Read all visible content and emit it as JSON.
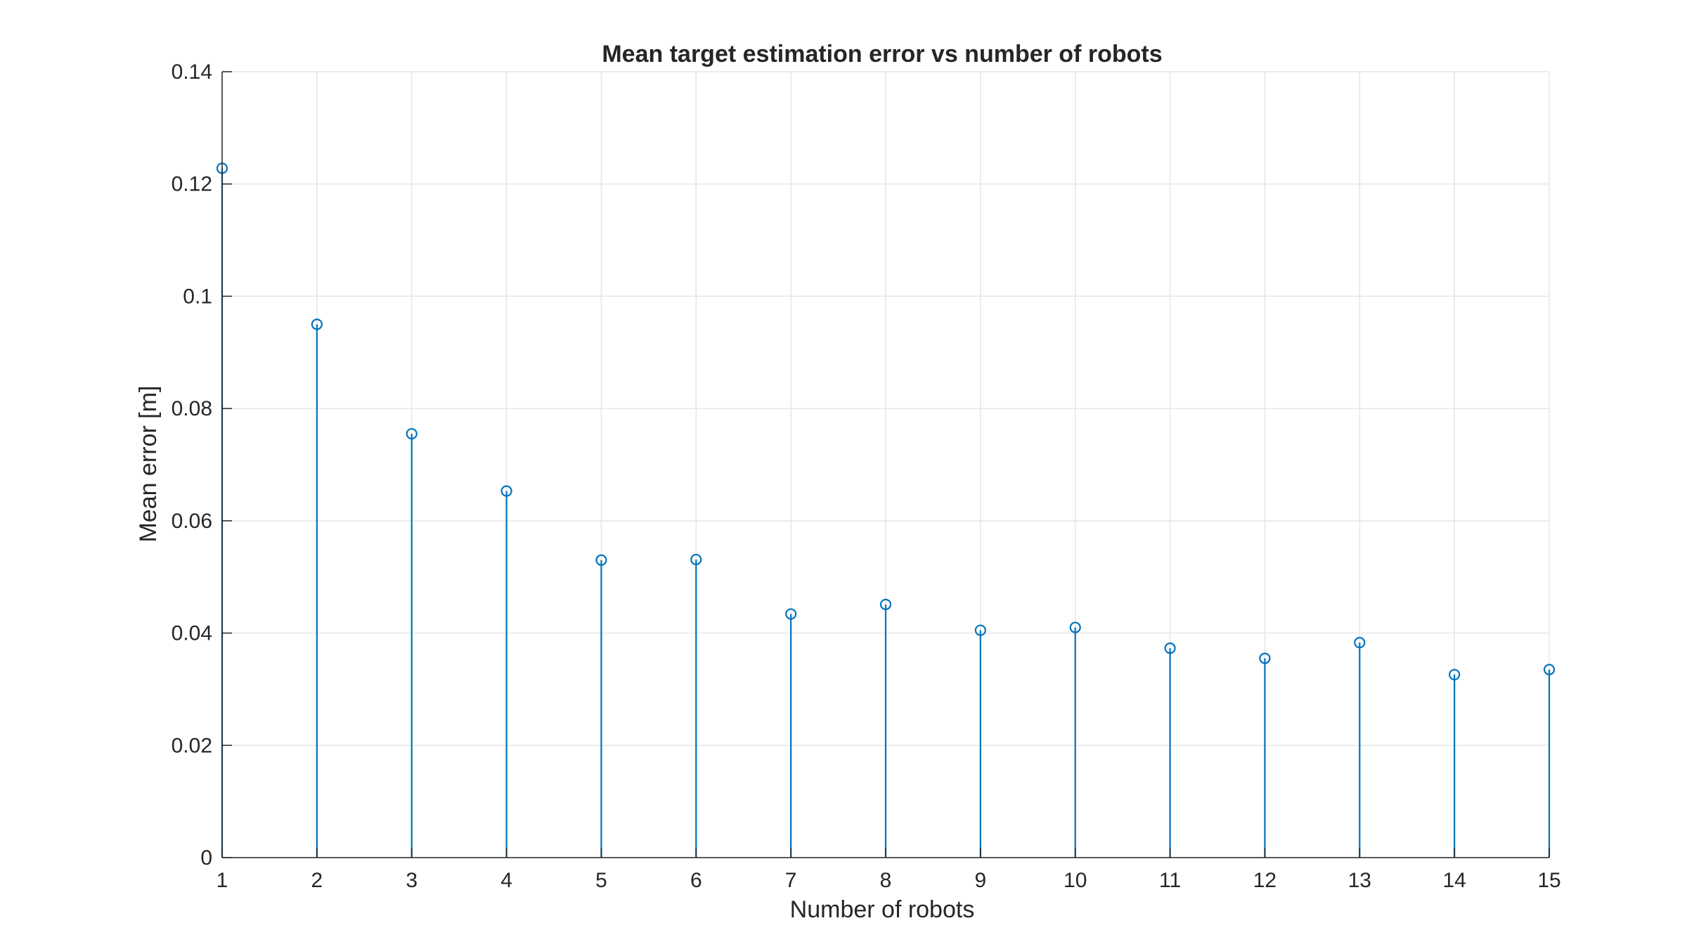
{
  "chart_data": {
    "type": "stem",
    "title": "Mean target estimation error vs number of robots",
    "xlabel": "Number of robots",
    "ylabel": "Mean error [m]",
    "x": [
      1,
      2,
      3,
      4,
      5,
      6,
      7,
      8,
      9,
      10,
      11,
      12,
      13,
      14,
      15
    ],
    "values": [
      0.1228,
      0.095,
      0.0755,
      0.0653,
      0.053,
      0.0531,
      0.0434,
      0.0451,
      0.0405,
      0.041,
      0.0373,
      0.0355,
      0.0383,
      0.0326,
      0.0335
    ],
    "xlim": [
      1,
      15
    ],
    "ylim": [
      0,
      0.14
    ],
    "xticks": [
      1,
      2,
      3,
      4,
      5,
      6,
      7,
      8,
      9,
      10,
      11,
      12,
      13,
      14,
      15
    ],
    "xtick_labels": [
      "1",
      "2",
      "3",
      "4",
      "5",
      "6",
      "7",
      "8",
      "9",
      "10",
      "11",
      "12",
      "13",
      "14",
      "15"
    ],
    "yticks": [
      0,
      0.02,
      0.04,
      0.06,
      0.08,
      0.1,
      0.12,
      0.14
    ],
    "ytick_labels": [
      "0",
      "0.02",
      "0.04",
      "0.06",
      "0.08",
      "0.1",
      "0.12",
      "0.14"
    ],
    "grid": true,
    "series_color": "#0072bd",
    "marker": "circle-icon"
  }
}
